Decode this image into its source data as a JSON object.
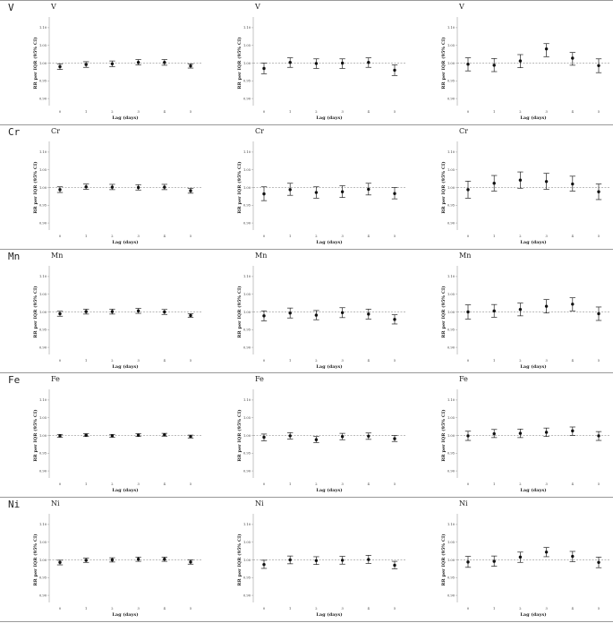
{
  "rows": [
    {
      "label": "V"
    },
    {
      "label": "Cr"
    },
    {
      "label": "Mn"
    },
    {
      "label": "Fe"
    },
    {
      "label": "Ni"
    }
  ],
  "chart_data": [
    {
      "type": "scatter",
      "title": "V",
      "xlabel": "Lag (days)",
      "ylabel": "RR per IQR (95% CI)",
      "xticks": [
        0,
        1,
        2,
        3,
        4,
        5
      ],
      "yticks": [
        "0.90",
        "0.95",
        "1.00",
        "1.05",
        "1.10"
      ],
      "ylim": [
        0.88,
        1.12
      ],
      "reference_line": 1.0,
      "series": [
        {
          "x": [
            0,
            1,
            2,
            3,
            4,
            5
          ],
          "y": [
            0.99,
            0.996,
            0.998,
            1.002,
            1.002,
            0.992
          ],
          "lower": [
            0.982,
            0.988,
            0.99,
            0.995,
            0.994,
            0.986
          ],
          "upper": [
            0.998,
            1.004,
            1.006,
            1.01,
            1.01,
            0.998
          ]
        }
      ]
    },
    {
      "type": "scatter",
      "title": "V",
      "xlabel": "Lag (days)",
      "ylabel": "RR per IQR (95% CI)",
      "xticks": [
        0,
        1,
        2,
        3,
        4,
        5
      ],
      "yticks": [
        "0.90",
        "0.95",
        "1.00",
        "1.05",
        "1.10"
      ],
      "ylim": [
        0.88,
        1.12
      ],
      "reference_line": 1.0,
      "series": [
        {
          "x": [
            0,
            1,
            2,
            3,
            4,
            5
          ],
          "y": [
            0.985,
            1.002,
            0.999,
            1.0,
            1.002,
            0.98
          ],
          "lower": [
            0.97,
            0.988,
            0.985,
            0.985,
            0.988,
            0.965
          ],
          "upper": [
            1.0,
            1.015,
            1.012,
            1.012,
            1.015,
            0.995
          ]
        }
      ]
    },
    {
      "type": "scatter",
      "title": "V",
      "xlabel": "Lag (days)",
      "ylabel": "RR per IQR (95% CI)",
      "xticks": [
        0,
        1,
        2,
        3,
        4,
        5
      ],
      "yticks": [
        "0.90",
        "0.95",
        "1.00",
        "1.05",
        "1.10"
      ],
      "ylim": [
        0.88,
        1.12
      ],
      "reference_line": 1.0,
      "series": [
        {
          "x": [
            0,
            1,
            2,
            3,
            4,
            5
          ],
          "y": [
            0.997,
            0.994,
            1.006,
            1.04,
            1.014,
            0.993
          ],
          "lower": [
            0.978,
            0.976,
            0.987,
            1.018,
            0.994,
            0.973
          ],
          "upper": [
            1.015,
            1.013,
            1.024,
            1.055,
            1.03,
            1.012
          ]
        }
      ]
    },
    {
      "type": "scatter",
      "title": "Cr",
      "xlabel": "Lag (days)",
      "ylabel": "RR per IQR (95% CI)",
      "xticks": [
        0,
        1,
        2,
        3,
        4,
        5
      ],
      "yticks": [
        "0.90",
        "0.95",
        "1.00",
        "1.05",
        "1.10"
      ],
      "ylim": [
        0.88,
        1.12
      ],
      "reference_line": 1.0,
      "series": [
        {
          "x": [
            0,
            1,
            2,
            3,
            4,
            5
          ],
          "y": [
            0.994,
            1.002,
            1.001,
            1.0,
            1.001,
            0.991
          ],
          "lower": [
            0.986,
            0.995,
            0.994,
            0.993,
            0.994,
            0.984
          ],
          "upper": [
            1.002,
            1.01,
            1.009,
            1.008,
            1.009,
            0.998
          ]
        }
      ]
    },
    {
      "type": "scatter",
      "title": "Cr",
      "xlabel": "Lag (days)",
      "ylabel": "RR per IQR (95% CI)",
      "xticks": [
        0,
        1,
        2,
        3,
        4,
        5
      ],
      "yticks": [
        "0.90",
        "0.95",
        "1.00",
        "1.05",
        "1.10"
      ],
      "ylim": [
        0.88,
        1.12
      ],
      "reference_line": 1.0,
      "series": [
        {
          "x": [
            0,
            1,
            2,
            3,
            4,
            5
          ],
          "y": [
            0.982,
            0.994,
            0.986,
            0.988,
            0.995,
            0.983
          ],
          "lower": [
            0.963,
            0.978,
            0.97,
            0.972,
            0.979,
            0.968
          ],
          "upper": [
            1.002,
            1.012,
            1.002,
            1.005,
            1.012,
            1.0
          ]
        }
      ]
    },
    {
      "type": "scatter",
      "title": "Cr",
      "xlabel": "Lag (days)",
      "ylabel": "RR per IQR (95% CI)",
      "xticks": [
        0,
        1,
        2,
        3,
        4,
        5
      ],
      "yticks": [
        "0.90",
        "0.95",
        "1.00",
        "1.05",
        "1.10"
      ],
      "ylim": [
        0.88,
        1.12
      ],
      "reference_line": 1.0,
      "series": [
        {
          "x": [
            0,
            1,
            2,
            3,
            4,
            5
          ],
          "y": [
            0.994,
            1.012,
            1.021,
            1.017,
            1.01,
            0.988
          ],
          "lower": [
            0.97,
            0.99,
            0.998,
            0.995,
            0.99,
            0.966
          ],
          "upper": [
            1.018,
            1.034,
            1.044,
            1.04,
            1.032,
            1.01
          ]
        }
      ]
    },
    {
      "type": "scatter",
      "title": "Mn",
      "xlabel": "Lag (days)",
      "ylabel": "RR per IQR (95% CI)",
      "xticks": [
        0,
        1,
        2,
        3,
        4,
        5
      ],
      "yticks": [
        "0.90",
        "0.95",
        "1.00",
        "1.05",
        "1.10"
      ],
      "ylim": [
        0.88,
        1.12
      ],
      "reference_line": 1.0,
      "series": [
        {
          "x": [
            0,
            1,
            2,
            3,
            4,
            5
          ],
          "y": [
            0.995,
            1.001,
            1.001,
            1.003,
            1.0,
            0.99
          ],
          "lower": [
            0.988,
            0.994,
            0.994,
            0.996,
            0.993,
            0.985
          ],
          "upper": [
            1.002,
            1.008,
            1.008,
            1.01,
            1.007,
            0.995
          ]
        }
      ]
    },
    {
      "type": "scatter",
      "title": "Mn",
      "xlabel": "Lag (days)",
      "ylabel": "RR per IQR (95% CI)",
      "xticks": [
        0,
        1,
        2,
        3,
        4,
        5
      ],
      "yticks": [
        "0.90",
        "0.95",
        "1.00",
        "1.05",
        "1.10"
      ],
      "ylim": [
        0.88,
        1.12
      ],
      "reference_line": 1.0,
      "series": [
        {
          "x": [
            0,
            1,
            2,
            3,
            4,
            5
          ],
          "y": [
            0.989,
            0.997,
            0.991,
            0.998,
            0.994,
            0.979
          ],
          "lower": [
            0.975,
            0.983,
            0.978,
            0.984,
            0.98,
            0.966
          ],
          "upper": [
            1.003,
            1.011,
            1.004,
            1.012,
            1.008,
            0.992
          ]
        }
      ]
    },
    {
      "type": "scatter",
      "title": "Mn",
      "xlabel": "Lag (days)",
      "ylabel": "RR per IQR (95% CI)",
      "xticks": [
        0,
        1,
        2,
        3,
        4,
        5
      ],
      "yticks": [
        "0.90",
        "0.95",
        "1.00",
        "1.05",
        "1.10"
      ],
      "ylim": [
        0.88,
        1.12
      ],
      "reference_line": 1.0,
      "series": [
        {
          "x": [
            0,
            1,
            2,
            3,
            4,
            5
          ],
          "y": [
            1.0,
            1.003,
            1.007,
            1.016,
            1.022,
            0.995
          ],
          "lower": [
            0.98,
            0.985,
            0.989,
            0.997,
            1.003,
            0.976
          ],
          "upper": [
            1.02,
            1.021,
            1.025,
            1.035,
            1.04,
            1.014
          ]
        }
      ]
    },
    {
      "type": "scatter",
      "title": "Fe",
      "xlabel": "Lag (days)",
      "ylabel": "RR per IQR (95% CI)",
      "xticks": [
        0,
        1,
        2,
        3,
        4,
        5
      ],
      "yticks": [
        "0.90",
        "0.95",
        "1.00",
        "1.05",
        "1.10"
      ],
      "ylim": [
        0.88,
        1.12
      ],
      "reference_line": 1.0,
      "series": [
        {
          "x": [
            0,
            1,
            2,
            3,
            4,
            5
          ],
          "y": [
            0.999,
            1.001,
            0.999,
            1.001,
            1.002,
            0.997
          ],
          "lower": [
            0.995,
            0.997,
            0.995,
            0.997,
            0.998,
            0.993
          ],
          "upper": [
            1.003,
            1.005,
            1.003,
            1.005,
            1.006,
            1.001
          ]
        }
      ]
    },
    {
      "type": "scatter",
      "title": "Fe",
      "xlabel": "Lag (days)",
      "ylabel": "RR per IQR (95% CI)",
      "xticks": [
        0,
        1,
        2,
        3,
        4,
        5
      ],
      "yticks": [
        "0.90",
        "0.95",
        "1.00",
        "1.05",
        "1.10"
      ],
      "ylim": [
        0.88,
        1.12
      ],
      "reference_line": 1.0,
      "series": [
        {
          "x": [
            0,
            1,
            2,
            3,
            4,
            5
          ],
          "y": [
            0.995,
            0.999,
            0.988,
            0.997,
            0.998,
            0.991
          ],
          "lower": [
            0.985,
            0.99,
            0.98,
            0.988,
            0.989,
            0.983
          ],
          "upper": [
            1.004,
            1.008,
            0.997,
            1.006,
            1.007,
            1.0
          ]
        }
      ]
    },
    {
      "type": "scatter",
      "title": "Fe",
      "xlabel": "Lag (days)",
      "ylabel": "RR per IQR (95% CI)",
      "xticks": [
        0,
        1,
        2,
        3,
        4,
        5
      ],
      "yticks": [
        "0.90",
        "0.95",
        "1.00",
        "1.05",
        "1.10"
      ],
      "ylim": [
        0.88,
        1.12
      ],
      "reference_line": 1.0,
      "series": [
        {
          "x": [
            0,
            1,
            2,
            3,
            4,
            5
          ],
          "y": [
            0.999,
            1.005,
            1.006,
            1.009,
            1.013,
            0.999
          ],
          "lower": [
            0.986,
            0.994,
            0.994,
            0.997,
            1.0,
            0.986
          ],
          "upper": [
            1.012,
            1.017,
            1.018,
            1.021,
            1.024,
            1.011
          ]
        }
      ]
    },
    {
      "type": "scatter",
      "title": "Ni",
      "xlabel": "Lag (days)",
      "ylabel": "RR per IQR (95% CI)",
      "xticks": [
        0,
        1,
        2,
        3,
        4,
        5
      ],
      "yticks": [
        "0.90",
        "0.95",
        "1.00",
        "1.05",
        "1.10"
      ],
      "ylim": [
        0.88,
        1.12
      ],
      "reference_line": 1.0,
      "series": [
        {
          "x": [
            0,
            1,
            2,
            3,
            4,
            5
          ],
          "y": [
            0.993,
            0.999,
            1.0,
            1.002,
            1.002,
            0.994
          ],
          "lower": [
            0.986,
            0.993,
            0.994,
            0.996,
            0.996,
            0.988
          ],
          "upper": [
            0.999,
            1.005,
            1.006,
            1.008,
            1.008,
            1.0
          ]
        }
      ]
    },
    {
      "type": "scatter",
      "title": "Ni",
      "xlabel": "Lag (days)",
      "ylabel": "RR per IQR (95% CI)",
      "xticks": [
        0,
        1,
        2,
        3,
        4,
        5
      ],
      "yticks": [
        "0.90",
        "0.95",
        "1.00",
        "1.05",
        "1.10"
      ],
      "ylim": [
        0.88,
        1.12
      ],
      "reference_line": 1.0,
      "series": [
        {
          "x": [
            0,
            1,
            2,
            3,
            4,
            5
          ],
          "y": [
            0.987,
            1.0,
            0.998,
            0.999,
            1.001,
            0.985
          ],
          "lower": [
            0.976,
            0.989,
            0.987,
            0.988,
            0.99,
            0.975
          ],
          "upper": [
            0.999,
            1.011,
            1.009,
            1.01,
            1.013,
            0.996
          ]
        }
      ]
    },
    {
      "type": "scatter",
      "title": "Ni",
      "xlabel": "Lag (days)",
      "ylabel": "RR per IQR (95% CI)",
      "xticks": [
        0,
        1,
        2,
        3,
        4,
        5
      ],
      "yticks": [
        "0.90",
        "0.95",
        "1.00",
        "1.05",
        "1.10"
      ],
      "ylim": [
        0.88,
        1.12
      ],
      "reference_line": 1.0,
      "series": [
        {
          "x": [
            0,
            1,
            2,
            3,
            4,
            5
          ],
          "y": [
            0.994,
            0.996,
            1.008,
            1.022,
            1.01,
            0.993
          ],
          "lower": [
            0.979,
            0.982,
            0.993,
            1.009,
            0.995,
            0.978
          ],
          "upper": [
            1.01,
            1.011,
            1.022,
            1.035,
            1.024,
            1.008
          ]
        }
      ]
    }
  ]
}
